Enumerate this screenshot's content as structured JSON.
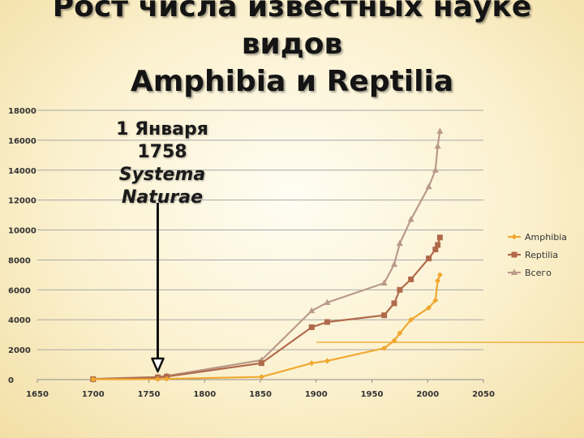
{
  "slide": {
    "title_line1": "Рост числа известных науке",
    "title_line2": "видов",
    "title_line3": "Amphibia и Reptilia",
    "annotation_line1": "1 Января",
    "annotation_line2": "1758",
    "annotation_line3": "Systema",
    "annotation_line4": "Naturae",
    "accent_line_color": "#f0b040"
  },
  "chart_data": {
    "type": "line",
    "xlim": [
      1650,
      2050
    ],
    "ylim": [
      0,
      18000
    ],
    "xticks": [
      1650,
      1700,
      1750,
      1800,
      1850,
      1900,
      1950,
      2000,
      2050
    ],
    "yticks": [
      0,
      2000,
      4000,
      6000,
      8000,
      10000,
      12000,
      14000,
      16000,
      18000
    ],
    "grid": true,
    "legend_position": "right",
    "annotation_arrow_x": 1758,
    "series": [
      {
        "name": "Amphibia",
        "color": "#f0a830",
        "marker": "diamond",
        "x": [
          1700,
          1758,
          1766,
          1851,
          1896,
          1910,
          1961,
          1970,
          1975,
          1985,
          2001,
          2007,
          2009,
          2011
        ],
        "y": [
          20,
          30,
          50,
          180,
          1100,
          1250,
          2100,
          2600,
          3100,
          4000,
          4800,
          5300,
          6600,
          7000
        ]
      },
      {
        "name": "Reptilia",
        "color": "#b06a4a",
        "marker": "square",
        "x": [
          1700,
          1758,
          1766,
          1851,
          1896,
          1910,
          1961,
          1970,
          1975,
          1985,
          2001,
          2007,
          2009,
          2011
        ],
        "y": [
          30,
          150,
          200,
          1100,
          3500,
          3850,
          4300,
          5100,
          6000,
          6700,
          8100,
          8700,
          9000,
          9500
        ]
      },
      {
        "name": "Всего",
        "color": "#b99a8a",
        "marker": "triangle",
        "x": [
          1700,
          1758,
          1766,
          1851,
          1896,
          1910,
          1961,
          1970,
          1975,
          1985,
          2001,
          2007,
          2009,
          2011
        ],
        "y": [
          50,
          180,
          250,
          1300,
          4600,
          5150,
          6450,
          7700,
          9100,
          10700,
          12900,
          14000,
          15600,
          16600
        ]
      }
    ]
  }
}
